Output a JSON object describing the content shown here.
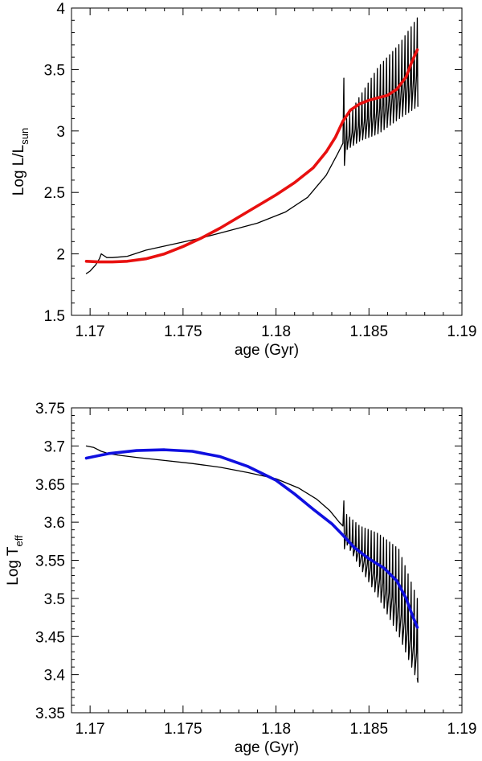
{
  "chart_data": [
    {
      "type": "line",
      "xlabel": "age (Gyr)",
      "ylabel": {
        "base": "Log L/L",
        "sub": "sun"
      },
      "xlim": [
        1.169,
        1.19
      ],
      "ylim": [
        1.5,
        4.0
      ],
      "xticks": [
        1.17,
        1.175,
        1.18,
        1.185,
        1.19
      ],
      "yticks": [
        1.5,
        2,
        2.5,
        3,
        3.5,
        4
      ],
      "xtick_labels": [
        "1.17",
        "1.175",
        "1.18",
        "1.185",
        "1.19"
      ],
      "ytick_labels": [
        "1.5",
        "2",
        "2.5",
        "3",
        "3.5",
        "4"
      ],
      "grid": false,
      "series": [
        {
          "color": "#000000",
          "style": "thin",
          "x": [
            1.1698,
            1.17,
            1.1703,
            1.1705,
            1.1706,
            1.1707,
            1.1709,
            1.1712,
            1.1716,
            1.172,
            1.173,
            1.1745,
            1.176,
            1.1775,
            1.179,
            1.1805,
            1.1817,
            1.1827,
            1.1833,
            1.1836
          ],
          "y": [
            1.84,
            1.86,
            1.91,
            1.96,
            2.0,
            1.99,
            1.97,
            1.97,
            1.975,
            1.98,
            2.03,
            2.08,
            2.13,
            2.19,
            2.25,
            2.34,
            2.46,
            2.64,
            2.81,
            2.9
          ],
          "oscillation": {
            "start_x": 1.1836,
            "end_x": 1.1876,
            "main_spike": {
              "x": 1.18365,
              "top": 3.43,
              "bottom": 2.72
            },
            "upper_envelope": [
              [
                1.1838,
                3.1
              ],
              [
                1.1845,
                3.28
              ],
              [
                1.1855,
                3.52
              ],
              [
                1.1866,
                3.7
              ],
              [
                1.1876,
                3.92
              ]
            ],
            "lower_envelope": [
              [
                1.1838,
                2.85
              ],
              [
                1.1845,
                2.92
              ],
              [
                1.1855,
                2.98
              ],
              [
                1.1866,
                3.1
              ],
              [
                1.1876,
                3.2
              ]
            ],
            "count": 24,
            "end_value": 3.74
          }
        },
        {
          "color": "#e8100f",
          "style": "thick",
          "x": [
            1.1698,
            1.1705,
            1.1712,
            1.172,
            1.173,
            1.174,
            1.175,
            1.176,
            1.177,
            1.178,
            1.179,
            1.18,
            1.181,
            1.182,
            1.1827,
            1.1832,
            1.1836,
            1.184,
            1.1845,
            1.185,
            1.1855,
            1.186,
            1.1865,
            1.187,
            1.1873,
            1.1876
          ],
          "y": [
            1.94,
            1.935,
            1.935,
            1.94,
            1.96,
            2.0,
            2.06,
            2.13,
            2.21,
            2.3,
            2.39,
            2.48,
            2.58,
            2.7,
            2.83,
            2.95,
            3.08,
            3.17,
            3.22,
            3.25,
            3.27,
            3.29,
            3.34,
            3.44,
            3.56,
            3.66
          ]
        }
      ]
    },
    {
      "type": "line",
      "xlabel": "age (Gyr)",
      "ylabel": {
        "base": "Log T",
        "sub": "eff"
      },
      "xlim": [
        1.169,
        1.19
      ],
      "ylim": [
        3.35,
        3.75
      ],
      "xticks": [
        1.17,
        1.175,
        1.18,
        1.185,
        1.19
      ],
      "yticks": [
        3.35,
        3.4,
        3.45,
        3.5,
        3.55,
        3.6,
        3.65,
        3.7,
        3.75
      ],
      "xtick_labels": [
        "1.17",
        "1.175",
        "1.18",
        "1.185",
        "1.19"
      ],
      "ytick_labels": [
        "3.35",
        "3.4",
        "3.45",
        "3.5",
        "3.55",
        "3.6",
        "3.65",
        "3.7",
        "3.75"
      ],
      "grid": false,
      "series": [
        {
          "color": "#000000",
          "style": "thin",
          "x": [
            1.1698,
            1.1702,
            1.1706,
            1.171,
            1.1715,
            1.1725,
            1.174,
            1.1755,
            1.177,
            1.1785,
            1.18,
            1.1812,
            1.1822,
            1.1829,
            1.1834,
            1.1836
          ],
          "y": [
            3.7,
            3.698,
            3.693,
            3.69,
            3.688,
            3.685,
            3.681,
            3.677,
            3.672,
            3.665,
            3.657,
            3.645,
            3.63,
            3.615,
            3.6,
            3.595
          ],
          "oscillation": {
            "start_x": 1.1836,
            "end_x": 1.1876,
            "main_spike": {
              "x": 1.18365,
              "top": 3.628,
              "bottom": 3.565
            },
            "upper_envelope": [
              [
                1.1838,
                3.61
              ],
              [
                1.1845,
                3.595
              ],
              [
                1.1855,
                3.585
              ],
              [
                1.1866,
                3.565
              ],
              [
                1.1876,
                3.5
              ]
            ],
            "lower_envelope": [
              [
                1.1838,
                3.57
              ],
              [
                1.1845,
                3.54
              ],
              [
                1.1855,
                3.5
              ],
              [
                1.1866,
                3.45
              ],
              [
                1.1876,
                3.39
              ]
            ],
            "count": 24,
            "end_value": 3.395
          }
        },
        {
          "color": "#1010e0",
          "style": "thick",
          "x": [
            1.1698,
            1.171,
            1.1725,
            1.174,
            1.1755,
            1.177,
            1.1785,
            1.18,
            1.181,
            1.182,
            1.183,
            1.1836,
            1.1842,
            1.185,
            1.1858,
            1.1865,
            1.187,
            1.1873,
            1.1876
          ],
          "y": [
            3.684,
            3.69,
            3.694,
            3.695,
            3.693,
            3.686,
            3.673,
            3.655,
            3.637,
            3.617,
            3.598,
            3.583,
            3.567,
            3.552,
            3.54,
            3.523,
            3.5,
            3.48,
            3.462
          ]
        }
      ]
    }
  ]
}
